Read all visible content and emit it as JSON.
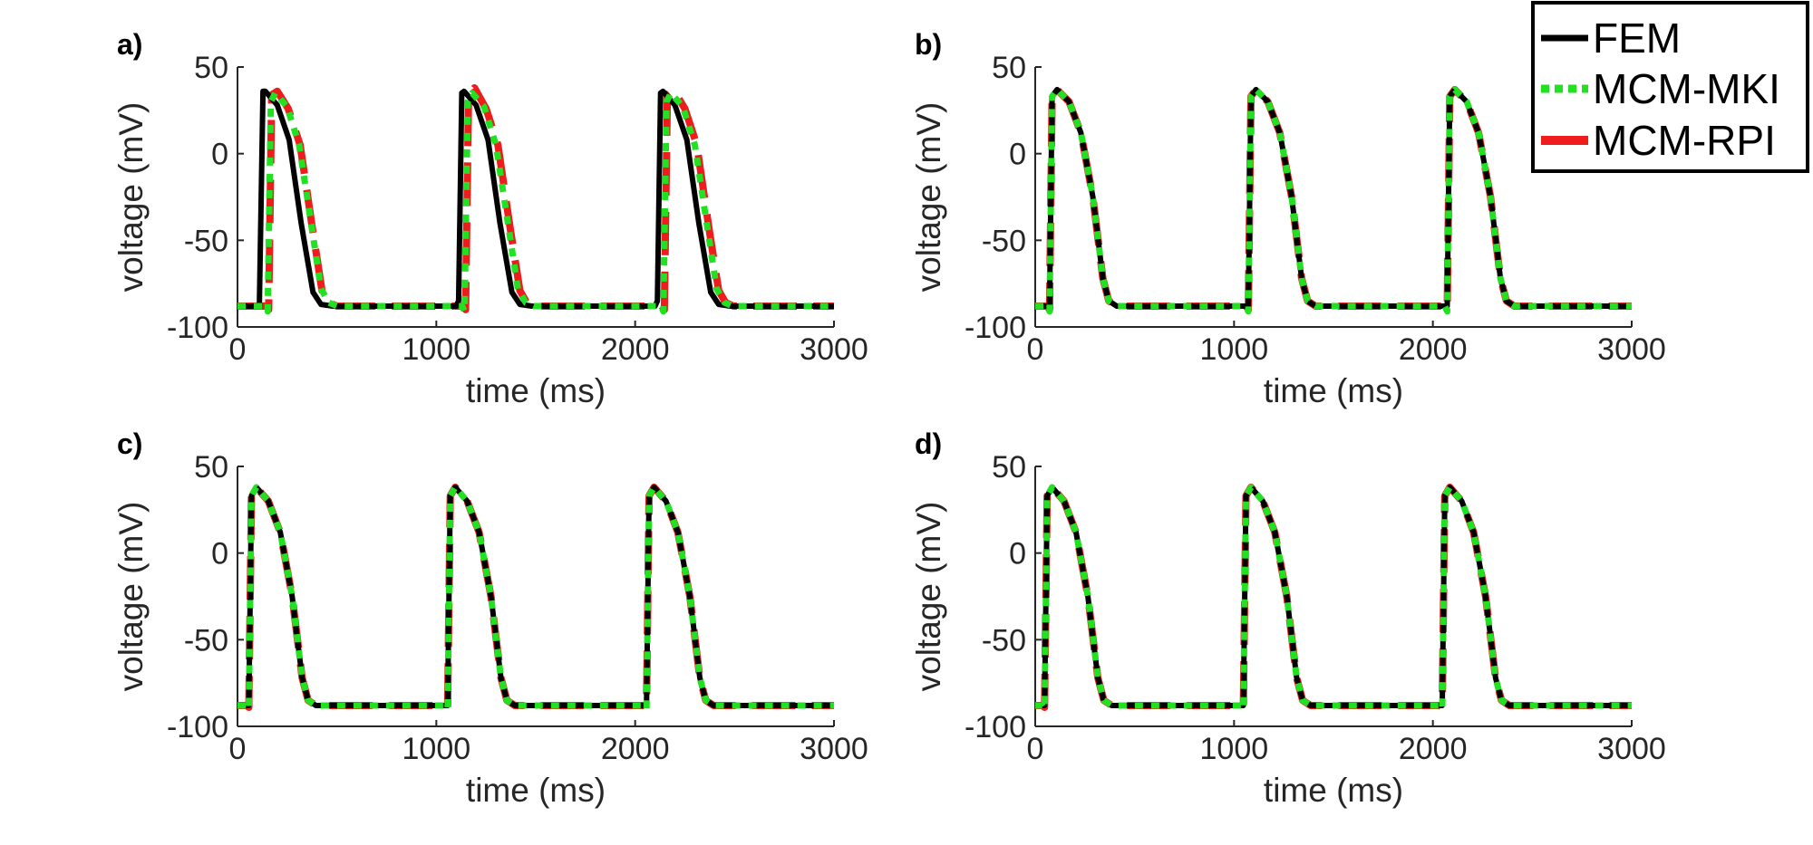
{
  "legend": {
    "entries": [
      {
        "label": "FEM",
        "color": "#000000",
        "style": "solid"
      },
      {
        "label": "MCM-MKI",
        "color": "#22e022",
        "style": "dotted"
      },
      {
        "label": "MCM-RPI",
        "color": "#ee1c1c",
        "style": "solid"
      }
    ]
  },
  "chart_data": [
    {
      "panel": "a)",
      "type": "line",
      "xlabel": "time (ms)",
      "ylabel": "voltage (mV)",
      "xlim": [
        0,
        3000
      ],
      "ylim": [
        -100,
        50
      ],
      "xticks": [
        0,
        1000,
        2000,
        3000
      ],
      "yticks": [
        50,
        0,
        -50,
        -100
      ],
      "series": [
        {
          "name": "FEM",
          "x": [
            0,
            110,
            128,
            140,
            200,
            260,
            320,
            380,
            420,
            480,
            1100,
            1112,
            1128,
            1140,
            1200,
            1260,
            1320,
            1380,
            1420,
            1480,
            2100,
            2112,
            2128,
            2140,
            2200,
            2260,
            2320,
            2380,
            2420,
            2480,
            3000
          ],
          "y": [
            -88,
            -88,
            36,
            36,
            28,
            8,
            -40,
            -80,
            -87,
            -88,
            -88,
            -85,
            35,
            36,
            28,
            8,
            -40,
            -80,
            -87,
            -88,
            -88,
            -85,
            35,
            36,
            28,
            8,
            -40,
            -80,
            -87,
            -88,
            -88
          ]
        },
        {
          "name": "MCM-MKI",
          "x": [
            0,
            140,
            152,
            168,
            190,
            250,
            310,
            370,
            420,
            460,
            500,
            1130,
            1142,
            1158,
            1180,
            1240,
            1300,
            1360,
            1410,
            1450,
            1490,
            2130,
            2142,
            2158,
            2180,
            2240,
            2300,
            2360,
            2410,
            2450,
            2490,
            3000
          ],
          "y": [
            -88,
            -88,
            -91,
            30,
            35,
            27,
            5,
            -40,
            -78,
            -86,
            -88,
            -88,
            -91,
            30,
            35,
            27,
            5,
            -40,
            -78,
            -86,
            -88,
            -88,
            -91,
            30,
            35,
            27,
            5,
            -40,
            -78,
            -86,
            -88,
            -88
          ]
        },
        {
          "name": "MCM-RPI",
          "x": [
            0,
            145,
            157,
            172,
            200,
            255,
            315,
            375,
            425,
            460,
            500,
            1135,
            1147,
            1162,
            1192,
            1250,
            1310,
            1370,
            1420,
            1455,
            1495,
            2135,
            2147,
            2162,
            2192,
            2250,
            2310,
            2370,
            2420,
            2455,
            2495,
            3000
          ],
          "y": [
            -88,
            -88,
            -90,
            34,
            36,
            26,
            5,
            -42,
            -79,
            -86,
            -88,
            -88,
            -90,
            34,
            38,
            26,
            5,
            -42,
            -79,
            -86,
            -88,
            -88,
            -90,
            34,
            37,
            26,
            5,
            -42,
            -79,
            -86,
            -88,
            -88
          ]
        }
      ]
    },
    {
      "panel": "b)",
      "type": "line",
      "xlabel": "time (ms)",
      "ylabel": "voltage (mV)",
      "xlim": [
        0,
        3000
      ],
      "ylim": [
        -100,
        50
      ],
      "xticks": [
        0,
        1000,
        2000,
        3000
      ],
      "yticks": [
        50,
        0,
        -50,
        -100
      ],
      "series": [
        {
          "name": "FEM",
          "x": [
            0,
            60,
            72,
            85,
            110,
            170,
            230,
            290,
            340,
            370,
            410,
            1060,
            1072,
            1085,
            1110,
            1170,
            1230,
            1290,
            1340,
            1370,
            1410,
            2060,
            2072,
            2085,
            2110,
            2170,
            2230,
            2290,
            2340,
            2370,
            2410,
            3000
          ],
          "y": [
            -88,
            -88,
            -88,
            33,
            37,
            30,
            12,
            -25,
            -72,
            -85,
            -88,
            -88,
            -88,
            33,
            37,
            30,
            12,
            -25,
            -72,
            -85,
            -88,
            -88,
            -88,
            33,
            37,
            30,
            12,
            -25,
            -72,
            -85,
            -88,
            -88
          ]
        },
        {
          "name": "MCM-MKI",
          "x": [
            0,
            60,
            72,
            85,
            110,
            170,
            230,
            290,
            340,
            370,
            410,
            1060,
            1072,
            1085,
            1110,
            1170,
            1230,
            1290,
            1340,
            1370,
            1410,
            2060,
            2072,
            2085,
            2110,
            2170,
            2230,
            2290,
            2340,
            2370,
            2410,
            3000
          ],
          "y": [
            -88,
            -88,
            -91,
            33,
            37,
            30,
            12,
            -25,
            -72,
            -85,
            -88,
            -88,
            -91,
            33,
            37,
            30,
            12,
            -25,
            -72,
            -85,
            -88,
            -88,
            -91,
            33,
            37,
            30,
            12,
            -25,
            -72,
            -85,
            -88,
            -88
          ]
        },
        {
          "name": "MCM-RPI",
          "x": [
            0,
            60,
            72,
            85,
            110,
            170,
            230,
            290,
            340,
            370,
            410,
            1060,
            1072,
            1085,
            1110,
            1170,
            1230,
            1290,
            1340,
            1370,
            1410,
            2060,
            2072,
            2085,
            2110,
            2170,
            2230,
            2290,
            2340,
            2370,
            2410,
            3000
          ],
          "y": [
            -88,
            -88,
            -90,
            33,
            37,
            30,
            12,
            -25,
            -72,
            -85,
            -88,
            -88,
            -90,
            33,
            37,
            30,
            12,
            -25,
            -72,
            -85,
            -88,
            -88,
            -90,
            33,
            37,
            30,
            12,
            -25,
            -72,
            -85,
            -88,
            -88
          ]
        }
      ]
    },
    {
      "panel": "c)",
      "type": "line",
      "xlabel": "time (ms)",
      "ylabel": "voltage (mV)",
      "xlim": [
        0,
        3000
      ],
      "ylim": [
        -100,
        50
      ],
      "xticks": [
        0,
        1000,
        2000,
        3000
      ],
      "yticks": [
        50,
        0,
        -50,
        -100
      ],
      "series": [
        {
          "name": "FEM",
          "x": [
            0,
            45,
            57,
            70,
            95,
            155,
            215,
            275,
            325,
            355,
            395,
            1045,
            1057,
            1070,
            1095,
            1155,
            1215,
            1275,
            1325,
            1355,
            1395,
            2045,
            2057,
            2070,
            2095,
            2155,
            2215,
            2275,
            2325,
            2355,
            2395,
            3000
          ],
          "y": [
            -88,
            -88,
            -88,
            33,
            38,
            30,
            12,
            -25,
            -72,
            -85,
            -88,
            -88,
            -88,
            33,
            38,
            30,
            12,
            -25,
            -72,
            -85,
            -88,
            -88,
            -88,
            33,
            38,
            30,
            12,
            -25,
            -72,
            -85,
            -88,
            -88
          ]
        },
        {
          "name": "MCM-MKI",
          "x": [
            0,
            45,
            57,
            70,
            95,
            155,
            215,
            275,
            325,
            355,
            395,
            1045,
            1057,
            1070,
            1095,
            1155,
            1215,
            1275,
            1325,
            1355,
            1395,
            2045,
            2057,
            2070,
            2095,
            2155,
            2215,
            2275,
            2325,
            2355,
            2395,
            3000
          ],
          "y": [
            -88,
            -88,
            -90,
            33,
            38,
            30,
            12,
            -25,
            -72,
            -85,
            -88,
            -88,
            -90,
            33,
            38,
            30,
            12,
            -25,
            -72,
            -85,
            -88,
            -88,
            -90,
            33,
            38,
            30,
            12,
            -25,
            -72,
            -85,
            -88,
            -88
          ]
        },
        {
          "name": "MCM-RPI",
          "x": [
            0,
            45,
            57,
            70,
            95,
            155,
            215,
            275,
            325,
            355,
            395,
            1045,
            1057,
            1070,
            1095,
            1155,
            1215,
            1275,
            1325,
            1355,
            1395,
            2045,
            2057,
            2070,
            2095,
            2155,
            2215,
            2275,
            2325,
            2355,
            2395,
            3000
          ],
          "y": [
            -88,
            -88,
            -89,
            33,
            38,
            30,
            12,
            -25,
            -72,
            -85,
            -88,
            -88,
            -89,
            33,
            38,
            30,
            12,
            -25,
            -72,
            -85,
            -88,
            -88,
            -89,
            33,
            38,
            30,
            12,
            -25,
            -72,
            -85,
            -88,
            -88
          ]
        }
      ]
    },
    {
      "panel": "d)",
      "type": "line",
      "xlabel": "time (ms)",
      "ylabel": "voltage (mV)",
      "xlim": [
        0,
        3000
      ],
      "ylim": [
        -100,
        50
      ],
      "xticks": [
        0,
        1000,
        2000,
        3000
      ],
      "yticks": [
        50,
        0,
        -50,
        -100
      ],
      "series": [
        {
          "name": "FEM",
          "x": [
            0,
            35,
            47,
            60,
            85,
            145,
            205,
            265,
            315,
            345,
            385,
            1035,
            1047,
            1060,
            1085,
            1145,
            1205,
            1265,
            1315,
            1345,
            1385,
            2035,
            2047,
            2060,
            2085,
            2145,
            2205,
            2265,
            2315,
            2345,
            2385,
            3000
          ],
          "y": [
            -88,
            -88,
            -88,
            33,
            38,
            30,
            12,
            -25,
            -72,
            -85,
            -88,
            -88,
            -88,
            33,
            38,
            30,
            12,
            -25,
            -72,
            -85,
            -88,
            -88,
            -88,
            33,
            38,
            30,
            12,
            -25,
            -72,
            -85,
            -88,
            -88
          ]
        },
        {
          "name": "MCM-MKI",
          "x": [
            0,
            35,
            47,
            60,
            85,
            145,
            205,
            265,
            315,
            345,
            385,
            1035,
            1047,
            1060,
            1085,
            1145,
            1205,
            1265,
            1315,
            1345,
            1385,
            2035,
            2047,
            2060,
            2085,
            2145,
            2205,
            2265,
            2315,
            2345,
            2385,
            3000
          ],
          "y": [
            -88,
            -88,
            -90,
            33,
            38,
            30,
            12,
            -25,
            -72,
            -85,
            -88,
            -88,
            -90,
            33,
            38,
            30,
            12,
            -25,
            -72,
            -85,
            -88,
            -88,
            -90,
            33,
            38,
            30,
            12,
            -25,
            -72,
            -85,
            -88,
            -88
          ]
        },
        {
          "name": "MCM-RPI",
          "x": [
            0,
            35,
            47,
            60,
            85,
            145,
            205,
            265,
            315,
            345,
            385,
            1035,
            1047,
            1060,
            1085,
            1145,
            1205,
            1265,
            1315,
            1345,
            1385,
            2035,
            2047,
            2060,
            2085,
            2145,
            2205,
            2265,
            2315,
            2345,
            2385,
            3000
          ],
          "y": [
            -88,
            -88,
            -89,
            33,
            38,
            30,
            12,
            -25,
            -72,
            -85,
            -88,
            -88,
            -89,
            33,
            38,
            30,
            12,
            -25,
            -72,
            -85,
            -88,
            -88,
            -89,
            33,
            38,
            30,
            12,
            -25,
            -72,
            -85,
            -88,
            -88
          ]
        }
      ]
    }
  ]
}
